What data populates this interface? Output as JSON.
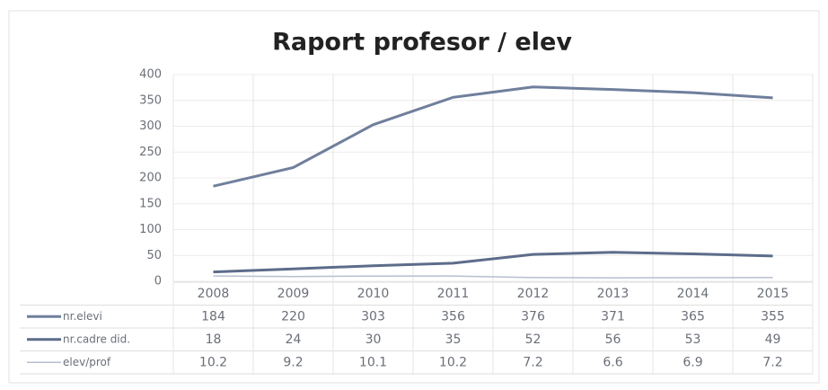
{
  "chart_data": {
    "type": "line",
    "title": "Raport profesor / elev",
    "categories": [
      "2008",
      "2009",
      "2010",
      "2011",
      "2012",
      "2013",
      "2014",
      "2015"
    ],
    "series": [
      {
        "name": "nr.elevi",
        "color": "#6f7f9c",
        "values": [
          184,
          220,
          303,
          356,
          376,
          371,
          365,
          355
        ]
      },
      {
        "name": "nr.cadre did.",
        "color": "#5d6c8a",
        "values": [
          18,
          24,
          30,
          35,
          52,
          56,
          53,
          49
        ]
      },
      {
        "name": "elev/prof",
        "color": "#b6bfcf",
        "values": [
          10.2,
          9.2,
          10.1,
          10.2,
          7.2,
          6.6,
          6.9,
          7.2
        ]
      }
    ],
    "ylim": [
      0,
      400
    ],
    "yticks": [
      0,
      50,
      100,
      150,
      200,
      250,
      300,
      350,
      400
    ],
    "grid": true
  }
}
